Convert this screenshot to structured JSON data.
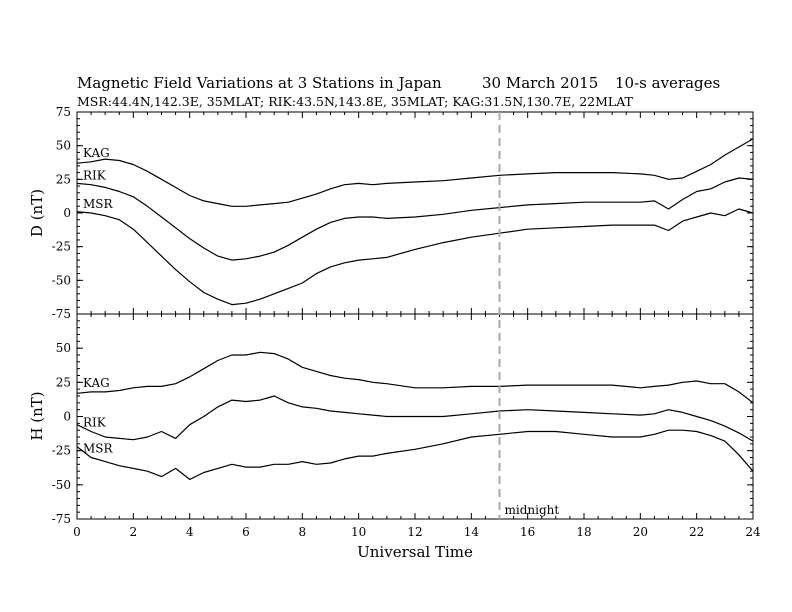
{
  "header": {
    "title": "Magnetic Field Variations at 3 Stations in Japan",
    "date": "30  March    2015",
    "averaging": "10-s averages",
    "stations": "MSR:44.4N,142.3E, 35MLAT;   RIK:43.5N,143.8E, 35MLAT;   KAG:31.5N,130.7E, 22MLAT"
  },
  "colors": {
    "trace": "#000000",
    "midnight_line": "#aaaaaa"
  },
  "chart_data": [
    {
      "type": "line",
      "panel": "top",
      "ylabel": "D (nT)",
      "ylim": [
        -75,
        75
      ],
      "yticks": [
        -75,
        -50,
        -25,
        0,
        25,
        50,
        75
      ],
      "xlim": [
        0,
        24
      ],
      "grid": false,
      "series": [
        {
          "name": "KAG",
          "x": [
            0,
            0.5,
            1,
            1.5,
            2,
            2.5,
            3,
            3.5,
            4,
            4.5,
            5,
            5.5,
            6,
            6.5,
            7,
            7.5,
            8,
            8.5,
            9,
            9.5,
            10,
            10.5,
            11,
            12,
            13,
            14,
            15,
            16,
            17,
            18,
            19,
            20,
            20.5,
            21,
            21.5,
            22,
            22.5,
            23,
            23.5,
            24
          ],
          "y": [
            37,
            38,
            40,
            39,
            36,
            31,
            25,
            19,
            13,
            9,
            7,
            5,
            5,
            6,
            7,
            8,
            11,
            14,
            18,
            21,
            22,
            21,
            22,
            23,
            24,
            26,
            28,
            29,
            30,
            30,
            30,
            29,
            28,
            25,
            26,
            31,
            36,
            43,
            49,
            55
          ]
        },
        {
          "name": "RIK",
          "x": [
            0,
            0.5,
            1,
            1.5,
            2,
            2.5,
            3,
            3.5,
            4,
            4.5,
            5,
            5.5,
            6,
            6.5,
            7,
            7.5,
            8,
            8.5,
            9,
            9.5,
            10,
            10.5,
            11,
            12,
            13,
            14,
            15,
            16,
            17,
            18,
            19,
            20,
            20.5,
            21,
            21.5,
            22,
            22.5,
            23,
            23.5,
            24
          ],
          "y": [
            22,
            21,
            19,
            16,
            12,
            5,
            -3,
            -11,
            -19,
            -26,
            -32,
            -35,
            -34,
            -32,
            -29,
            -24,
            -18,
            -12,
            -7,
            -4,
            -3,
            -3,
            -4,
            -3,
            -1,
            2,
            4,
            6,
            7,
            8,
            8,
            8,
            9,
            3,
            10,
            16,
            18,
            23,
            26,
            25
          ]
        },
        {
          "name": "MSR",
          "x": [
            0,
            0.5,
            1,
            1.5,
            2,
            2.5,
            3,
            3.5,
            4,
            4.5,
            5,
            5.5,
            6,
            6.5,
            7,
            7.5,
            8,
            8.5,
            9,
            9.5,
            10,
            10.5,
            11,
            12,
            13,
            14,
            15,
            16,
            17,
            18,
            19,
            20,
            20.5,
            21,
            21.5,
            22,
            22.5,
            23,
            23.5,
            24
          ],
          "y": [
            1,
            0,
            -2,
            -5,
            -12,
            -22,
            -32,
            -42,
            -51,
            -59,
            -64,
            -68,
            -67,
            -64,
            -60,
            -56,
            -52,
            -45,
            -40,
            -37,
            -35,
            -34,
            -33,
            -27,
            -22,
            -18,
            -15,
            -12,
            -11,
            -10,
            -9,
            -9,
            -9,
            -13,
            -6,
            -3,
            0,
            -2,
            3,
            0
          ]
        }
      ]
    },
    {
      "type": "line",
      "panel": "bottom",
      "ylabel": "H (nT)",
      "xlabel": "Universal Time",
      "ylim": [
        -75,
        75
      ],
      "yticks": [
        -75,
        -50,
        -25,
        0,
        25,
        50
      ],
      "xlim": [
        0,
        24
      ],
      "xticks": [
        0,
        2,
        4,
        6,
        8,
        10,
        12,
        14,
        16,
        18,
        20,
        22,
        24
      ],
      "grid": false,
      "series": [
        {
          "name": "KAG",
          "x": [
            0,
            0.5,
            1,
            1.5,
            2,
            2.5,
            3,
            3.5,
            4,
            4.5,
            5,
            5.5,
            6,
            6.5,
            7,
            7.5,
            8,
            8.5,
            9,
            9.5,
            10,
            10.5,
            11,
            12,
            13,
            14,
            15,
            16,
            17,
            18,
            19,
            20,
            20.5,
            21,
            21.5,
            22,
            22.5,
            23,
            23.5,
            24
          ],
          "y": [
            17,
            18,
            18,
            19,
            21,
            22,
            22,
            24,
            29,
            35,
            41,
            45,
            45,
            47,
            46,
            42,
            36,
            33,
            30,
            28,
            27,
            25,
            24,
            21,
            21,
            22,
            22,
            23,
            23,
            23,
            23,
            21,
            22,
            23,
            25,
            26,
            24,
            24,
            18,
            10
          ]
        },
        {
          "name": "RIK",
          "x": [
            0,
            0.5,
            1,
            1.5,
            2,
            2.5,
            3,
            3.5,
            4,
            4.5,
            5,
            5.5,
            6,
            6.5,
            7,
            7.5,
            8,
            8.5,
            9,
            9.5,
            10,
            10.5,
            11,
            12,
            13,
            14,
            15,
            16,
            17,
            18,
            19,
            20,
            20.5,
            21,
            21.5,
            22,
            22.5,
            23,
            23.5,
            24
          ],
          "y": [
            -6,
            -11,
            -15,
            -16,
            -17,
            -15,
            -11,
            -16,
            -6,
            0,
            7,
            12,
            11,
            12,
            15,
            10,
            7,
            6,
            4,
            3,
            2,
            1,
            0,
            0,
            0,
            2,
            4,
            5,
            4,
            3,
            2,
            1,
            2,
            5,
            3,
            0,
            -3,
            -7,
            -12,
            -18
          ]
        },
        {
          "name": "MSR",
          "x": [
            0,
            0.5,
            1,
            1.5,
            2,
            2.5,
            3,
            3.5,
            4,
            4.5,
            5,
            5.5,
            6,
            6.5,
            7,
            7.5,
            8,
            8.5,
            9,
            9.5,
            10,
            10.5,
            11,
            12,
            13,
            14,
            15,
            16,
            17,
            18,
            19,
            20,
            20.5,
            21,
            21.5,
            22,
            22.5,
            23,
            23.5,
            24
          ],
          "y": [
            -22,
            -30,
            -33,
            -36,
            -38,
            -40,
            -44,
            -38,
            -46,
            -41,
            -38,
            -35,
            -37,
            -37,
            -35,
            -35,
            -33,
            -35,
            -34,
            -31,
            -29,
            -29,
            -27,
            -24,
            -20,
            -15,
            -13,
            -11,
            -11,
            -13,
            -15,
            -15,
            -13,
            -10,
            -10,
            -11,
            -14,
            -18,
            -28,
            -40
          ]
        }
      ]
    }
  ],
  "annotations": {
    "midnight_label": "midnight",
    "midnight_ut": 15
  }
}
